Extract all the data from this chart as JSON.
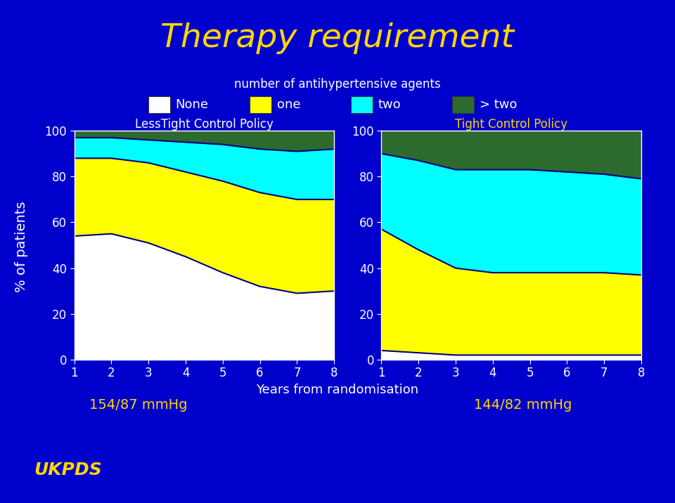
{
  "title": "Therapy requirement",
  "title_color": "#FFD700",
  "bg_color": "#0000CC",
  "subtitle": "number of antihypertensive agents",
  "subtitle_color": "#FFFFFF",
  "legend_labels": [
    "None",
    "one",
    "two",
    "> two"
  ],
  "legend_colors": [
    "#FFFFFF",
    "#FFFF00",
    "#00FFFF",
    "#2D6A2D"
  ],
  "years": [
    1,
    2,
    3,
    4,
    5,
    6,
    7,
    8
  ],
  "lesstight_title": "LessTight Control Policy",
  "tight_title": "Tight Control Policy",
  "lesstight_none": [
    54,
    55,
    51,
    45,
    38,
    32,
    29,
    30
  ],
  "lesstight_one": [
    34,
    33,
    35,
    37,
    40,
    41,
    41,
    40
  ],
  "lesstight_two": [
    9,
    9,
    10,
    13,
    16,
    19,
    21,
    22
  ],
  "lesstight_gtwo": [
    3,
    3,
    4,
    5,
    6,
    8,
    9,
    8
  ],
  "tight_none": [
    4,
    3,
    2,
    2,
    2,
    2,
    2,
    2
  ],
  "tight_one": [
    53,
    45,
    38,
    36,
    36,
    36,
    36,
    35
  ],
  "tight_two": [
    33,
    39,
    43,
    45,
    45,
    44,
    43,
    42
  ],
  "tight_gtwo": [
    10,
    13,
    17,
    17,
    17,
    18,
    19,
    21
  ],
  "left_label": "154/87 mmHg",
  "right_label": "144/82 mmHg",
  "xlabel": "Years from randomisation",
  "ylabel": "% of patients",
  "bottom_label": "UKPDS",
  "label_color": "#FFD700",
  "text_color": "#FFFFFF",
  "lesstight_title_color": "#FFFFFF",
  "tight_title_color": "#FFD700",
  "line_color": "#000080",
  "line_width": 1.5
}
